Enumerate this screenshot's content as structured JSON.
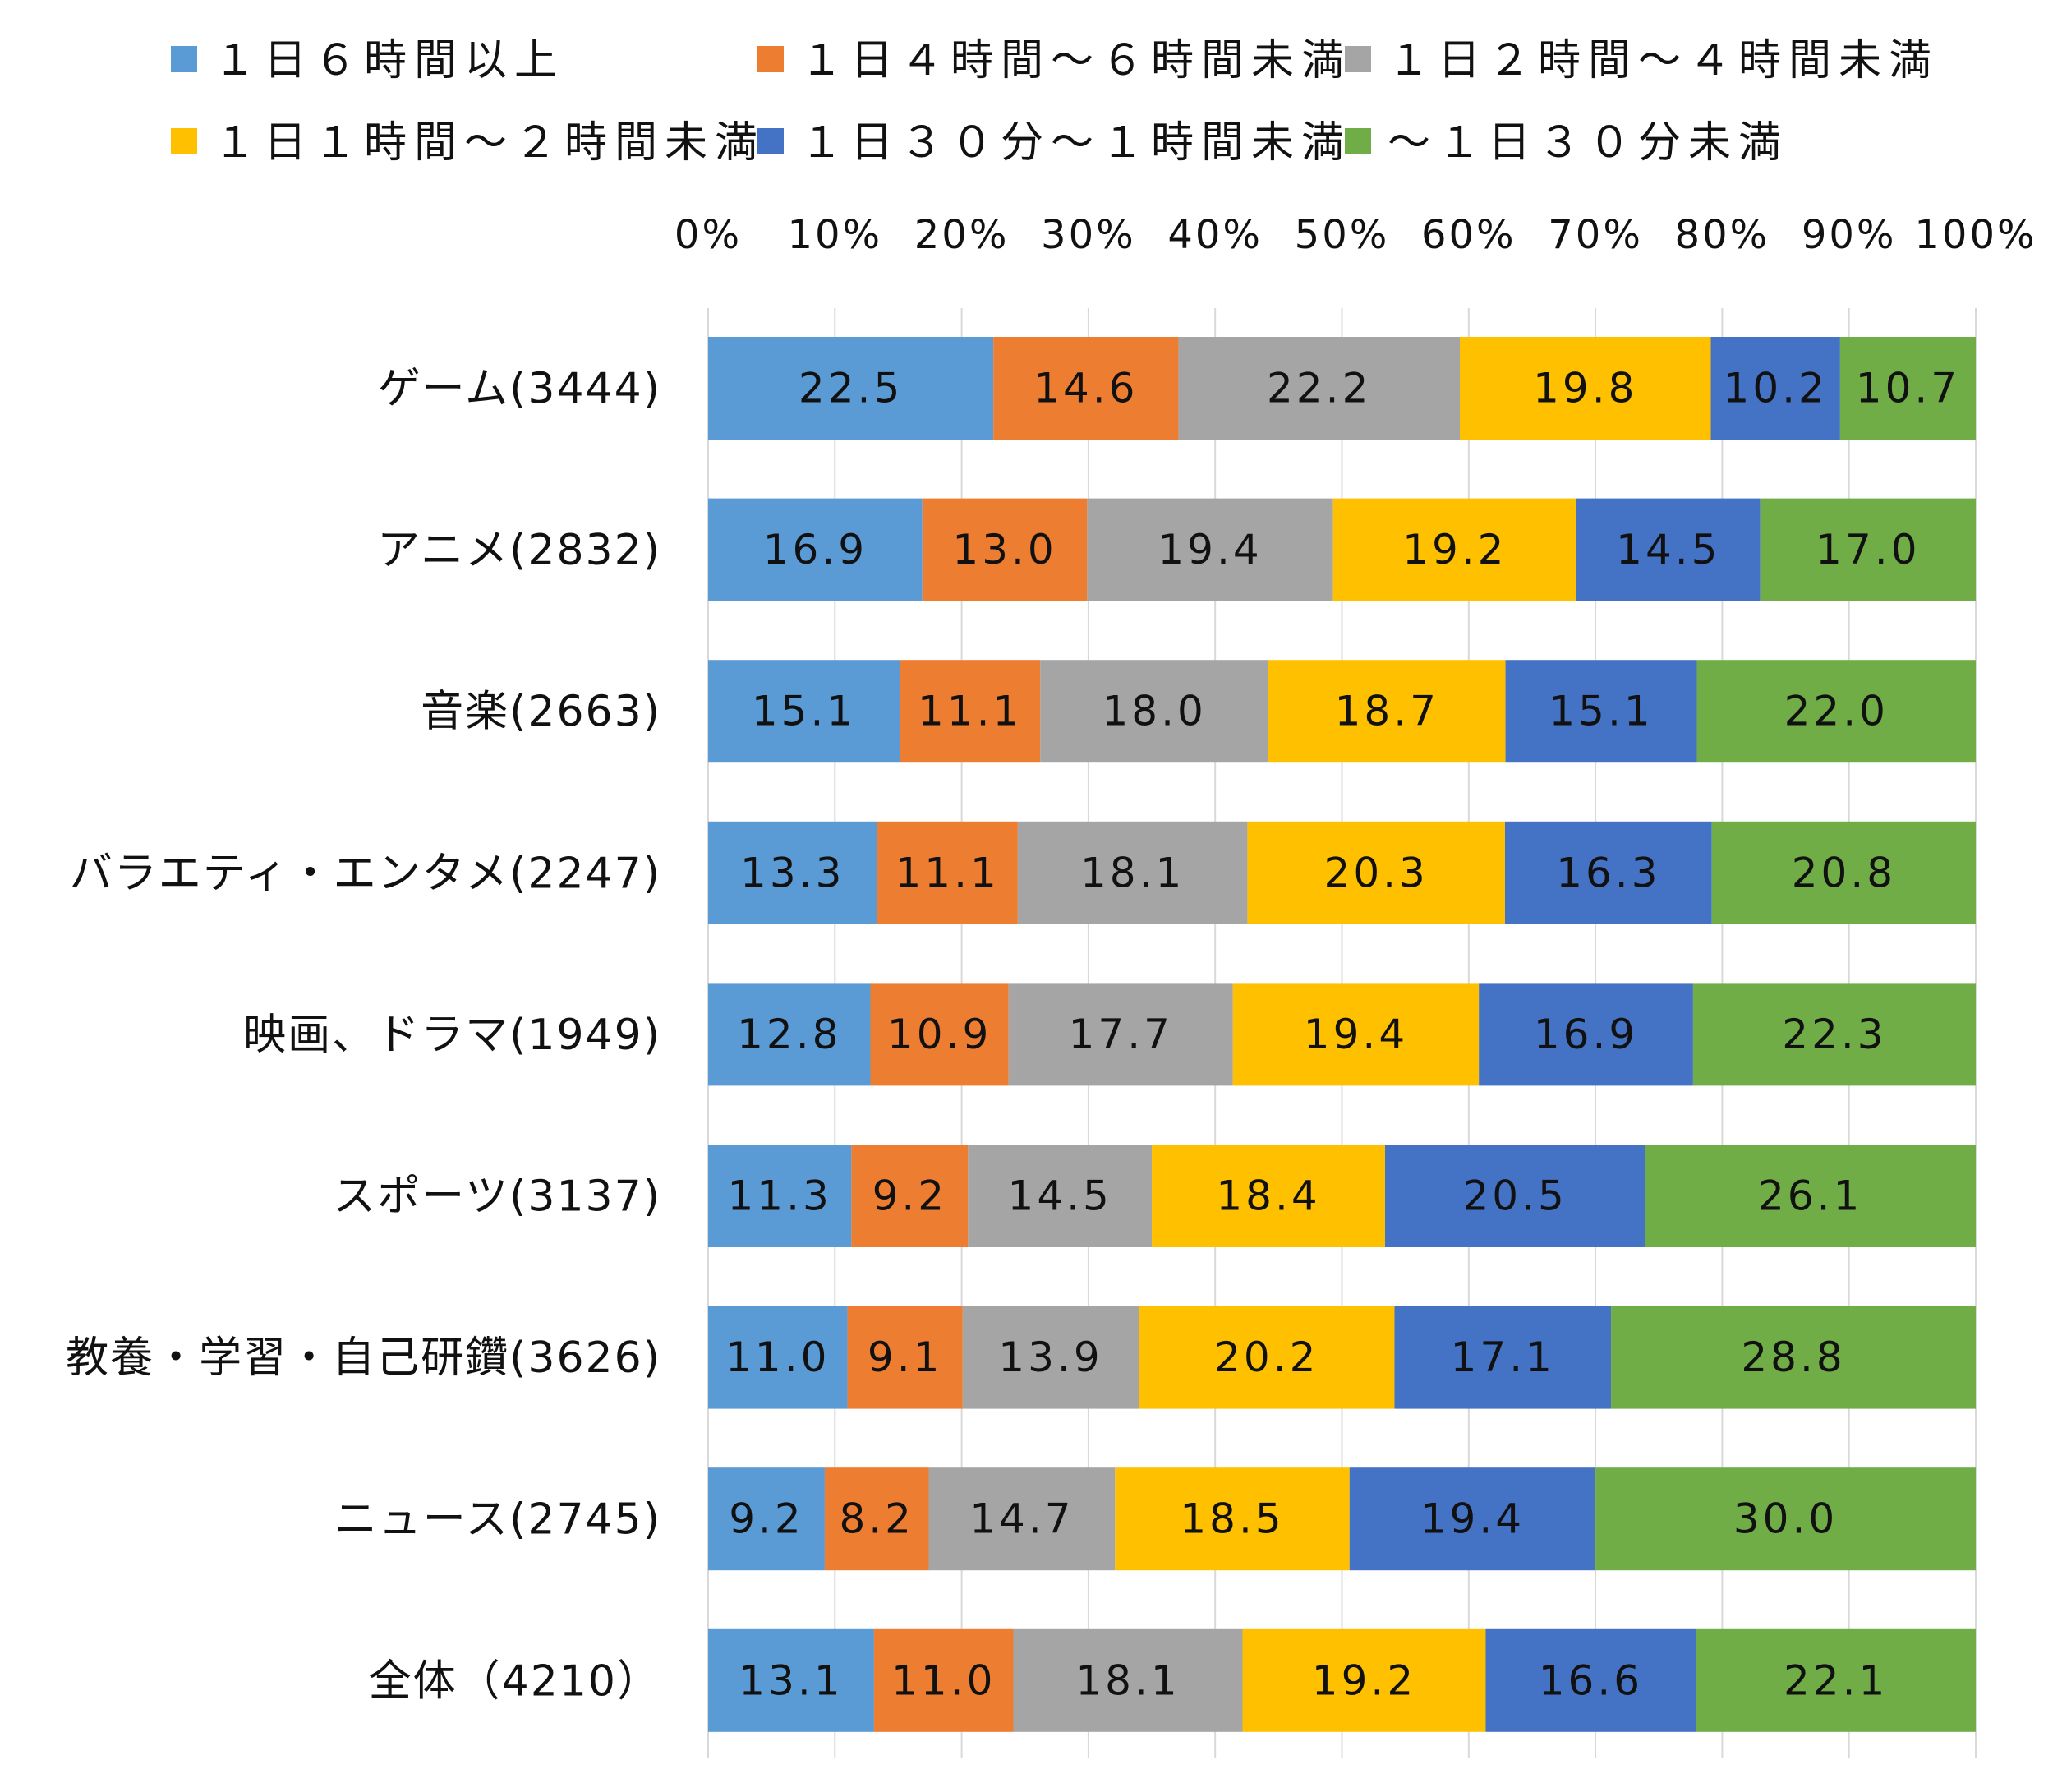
{
  "chart_data": {
    "type": "bar",
    "orientation": "horizontal",
    "stacked": "percent",
    "xlim": [
      0,
      100
    ],
    "x_ticks": [
      "0%",
      "10%",
      "20%",
      "30%",
      "40%",
      "50%",
      "60%",
      "70%",
      "80%",
      "90%",
      "100%"
    ],
    "grid": true,
    "legend_position": "top",
    "categories": [
      "ゲーム(3444)",
      "アニメ(2832)",
      "音楽(2663)",
      "バラエティ・エンタメ(2247)",
      "映画、ドラマ(1949)",
      "スポーツ(3137)",
      "教養・学習・自己研鑽(3626)",
      "ニュース(2745)",
      "全体（4210）"
    ],
    "series": [
      {
        "name": "１日６時間以上",
        "color": "#5B9BD5",
        "values": [
          22.5,
          16.9,
          15.1,
          13.3,
          12.8,
          11.3,
          11.0,
          9.2,
          13.1
        ]
      },
      {
        "name": "１日４時間～６時間未満",
        "color": "#ED7D31",
        "values": [
          14.6,
          13.0,
          11.1,
          11.1,
          10.9,
          9.2,
          9.1,
          8.2,
          11.0
        ]
      },
      {
        "name": "１日２時間～４時間未満",
        "color": "#A5A5A5",
        "values": [
          22.2,
          19.4,
          18.0,
          18.1,
          17.7,
          14.5,
          13.9,
          14.7,
          18.1
        ]
      },
      {
        "name": "１日１時間～２時間未満",
        "color": "#FFC000",
        "values": [
          19.8,
          19.2,
          18.7,
          20.3,
          19.4,
          18.4,
          20.2,
          18.5,
          19.2
        ]
      },
      {
        "name": "１日３０分～１時間未満",
        "color": "#4472C4",
        "values": [
          10.2,
          14.5,
          15.1,
          16.3,
          16.9,
          20.5,
          17.1,
          19.4,
          16.6
        ]
      },
      {
        "name": "～１日３０分未満",
        "color": "#70AD47",
        "values": [
          10.7,
          17.0,
          22.0,
          20.8,
          22.3,
          26.1,
          28.8,
          30.0,
          22.1
        ]
      }
    ],
    "value_labels": [
      [
        "22.5",
        "14.6",
        "22.2",
        "19.8",
        "10.2",
        "10.7"
      ],
      [
        "16.9",
        "13.0",
        "19.4",
        "19.2",
        "14.5",
        "17.0"
      ],
      [
        "15.1",
        "11.1",
        "18.0",
        "18.7",
        "15.1",
        "22.0"
      ],
      [
        "13.3",
        "11.1",
        "18.1",
        "20.3",
        "16.3",
        "20.8"
      ],
      [
        "12.8",
        "10.9",
        "17.7",
        "19.4",
        "16.9",
        "22.3"
      ],
      [
        "11.3",
        "9.2",
        "14.5",
        "18.4",
        "20.5",
        "26.1"
      ],
      [
        "11.0",
        "9.1",
        "13.9",
        "20.2",
        "17.1",
        "28.8"
      ],
      [
        "9.2",
        "8.2",
        "14.7",
        "18.5",
        "19.4",
        "30.0"
      ],
      [
        "13.1",
        "11.0",
        "18.1",
        "19.2",
        "16.6",
        "22.1"
      ]
    ]
  }
}
